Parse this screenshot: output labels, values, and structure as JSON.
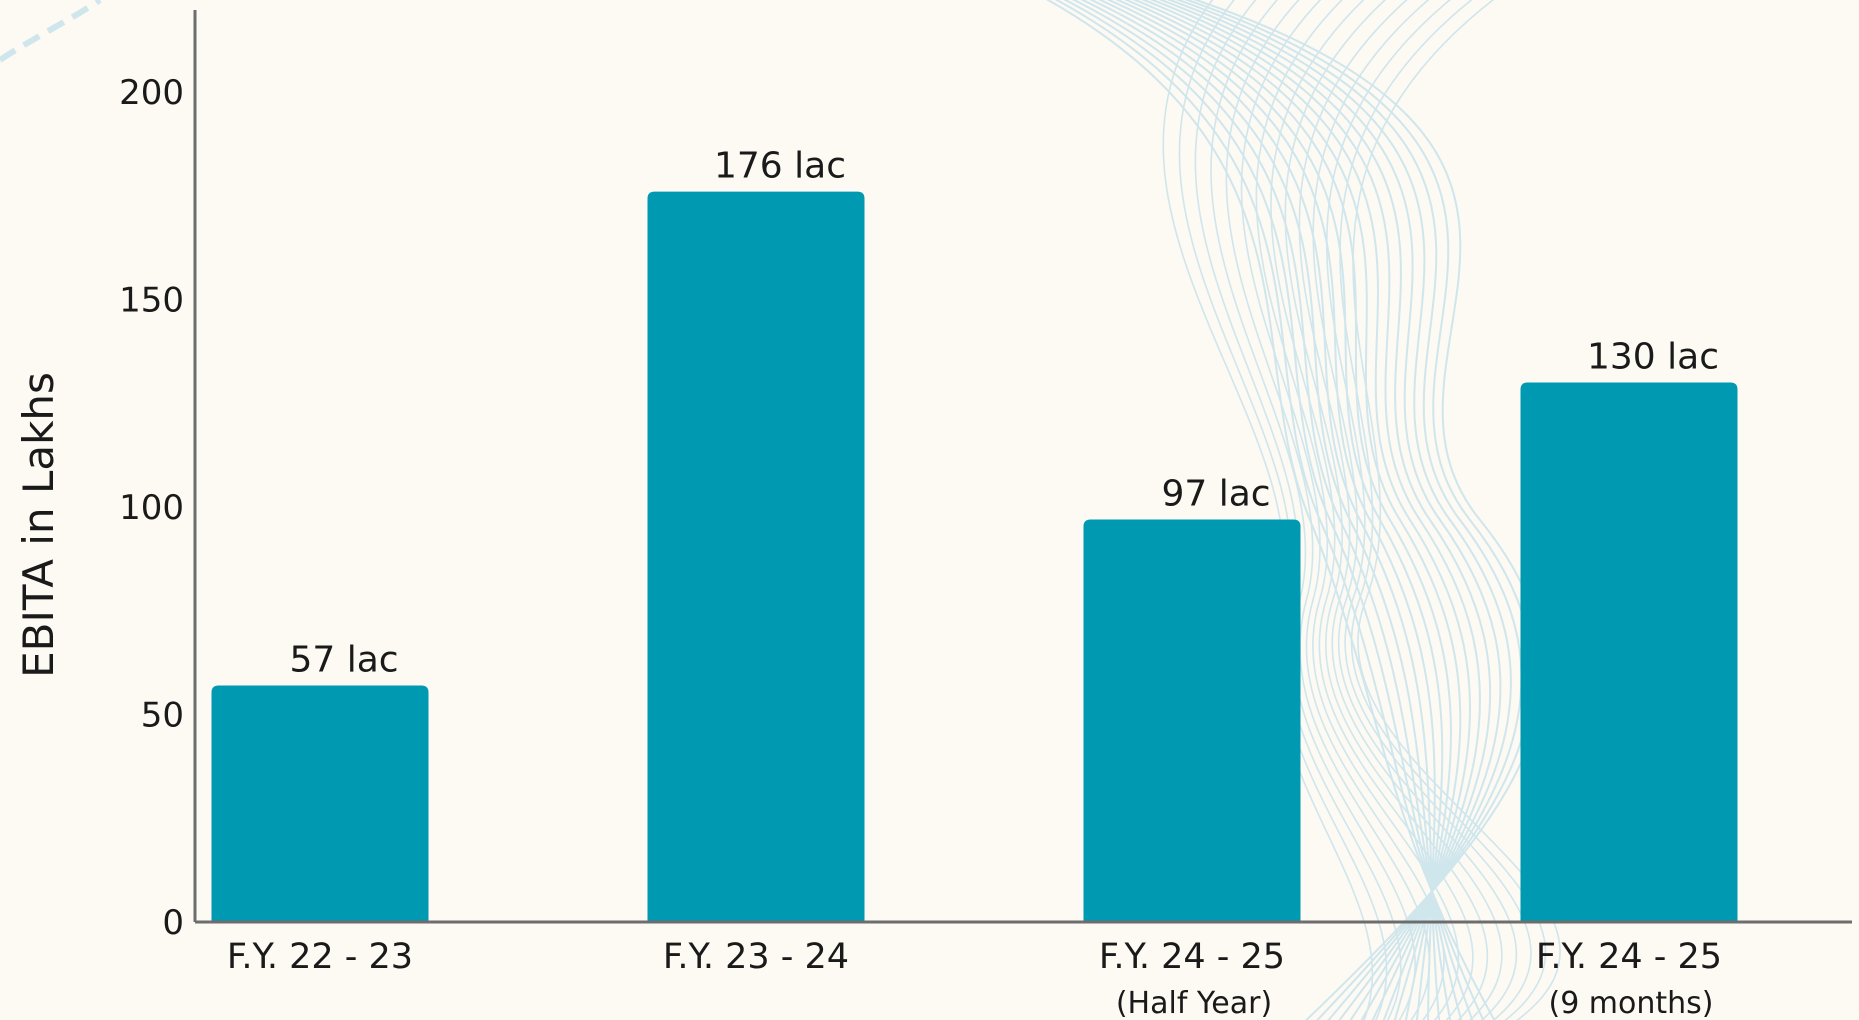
{
  "chart_data": {
    "type": "bar",
    "ylabel": "EBITA in Lakhs",
    "xlabel": "",
    "ylim": [
      0,
      220
    ],
    "yticks": [
      0,
      50,
      100,
      150,
      200
    ],
    "grid": false,
    "bar_color": "#0099b2",
    "axis_color": "#6d6d6d",
    "background_color": "#fdf9f3",
    "decor_line_color": "#cfe6ed",
    "categories": [
      {
        "label": "F.Y. 22 - 23",
        "sublabel": ""
      },
      {
        "label": "F.Y. 23 - 24",
        "sublabel": ""
      },
      {
        "label": "F.Y. 24 - 25",
        "sublabel": "(Half Year)"
      },
      {
        "label": "F.Y. 24 - 25",
        "sublabel": "(9 months)"
      }
    ],
    "values": [
      57,
      176,
      97,
      130
    ],
    "data_labels": [
      "57 lac",
      "176 lac",
      "97 lac",
      "130 lac"
    ]
  }
}
